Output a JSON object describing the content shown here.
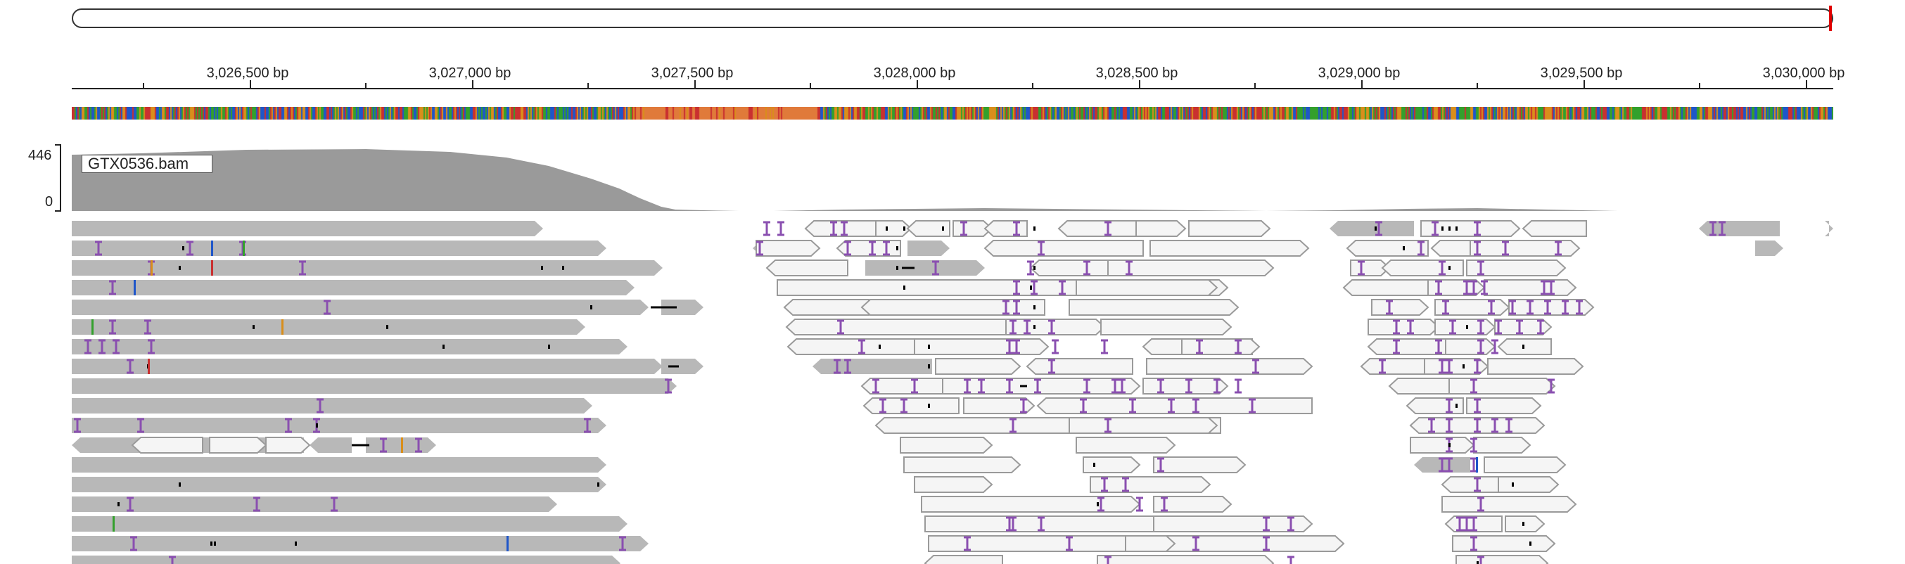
{
  "browser": {
    "locus_marker_color": "#e00000"
  },
  "ruler": {
    "ticks": [
      "3,026,500 bp",
      "3,027,000 bp",
      "3,027,500 bp",
      "3,028,000 bp",
      "3,028,500 bp",
      "3,029,000 bp",
      "3,029,500 bp",
      "3,030,000 bp"
    ]
  },
  "sequence_track": {
    "colors": {
      "A": "#33a02c",
      "C": "#1f56c9",
      "G": "#d98e1b",
      "T": "#c93030"
    },
    "gc_rich_region_color": "#e07a3a"
  },
  "coverage": {
    "track_name": "GTX0536.bam",
    "data_range_max": "446",
    "data_range_min": "0",
    "fill_color": "#9a9a9a"
  },
  "alignments": {
    "read_color": "#b8b8b8",
    "low_mapq_read_color": "#f5f5f5",
    "insertion_color": "#8a4fb0",
    "deletion_color": "#000000"
  }
}
